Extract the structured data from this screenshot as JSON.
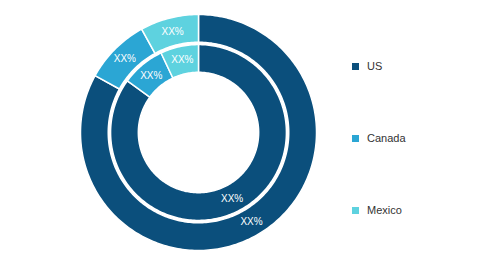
{
  "chart_data": {
    "type": "donut",
    "categories": [
      "US",
      "Canada",
      "Mexico"
    ],
    "colors": [
      "#0b4f7c",
      "#2ba6d4",
      "#5ed2df"
    ],
    "series": [
      {
        "values": [
          85,
          8,
          7
        ],
        "value_labels": [
          "XX%",
          "XX%",
          "XX%"
        ]
      },
      {
        "values": [
          83,
          9,
          8
        ],
        "value_labels": [
          "XX%",
          "XX%",
          "XX%"
        ]
      }
    ],
    "data_labels": true,
    "legend": "right"
  }
}
